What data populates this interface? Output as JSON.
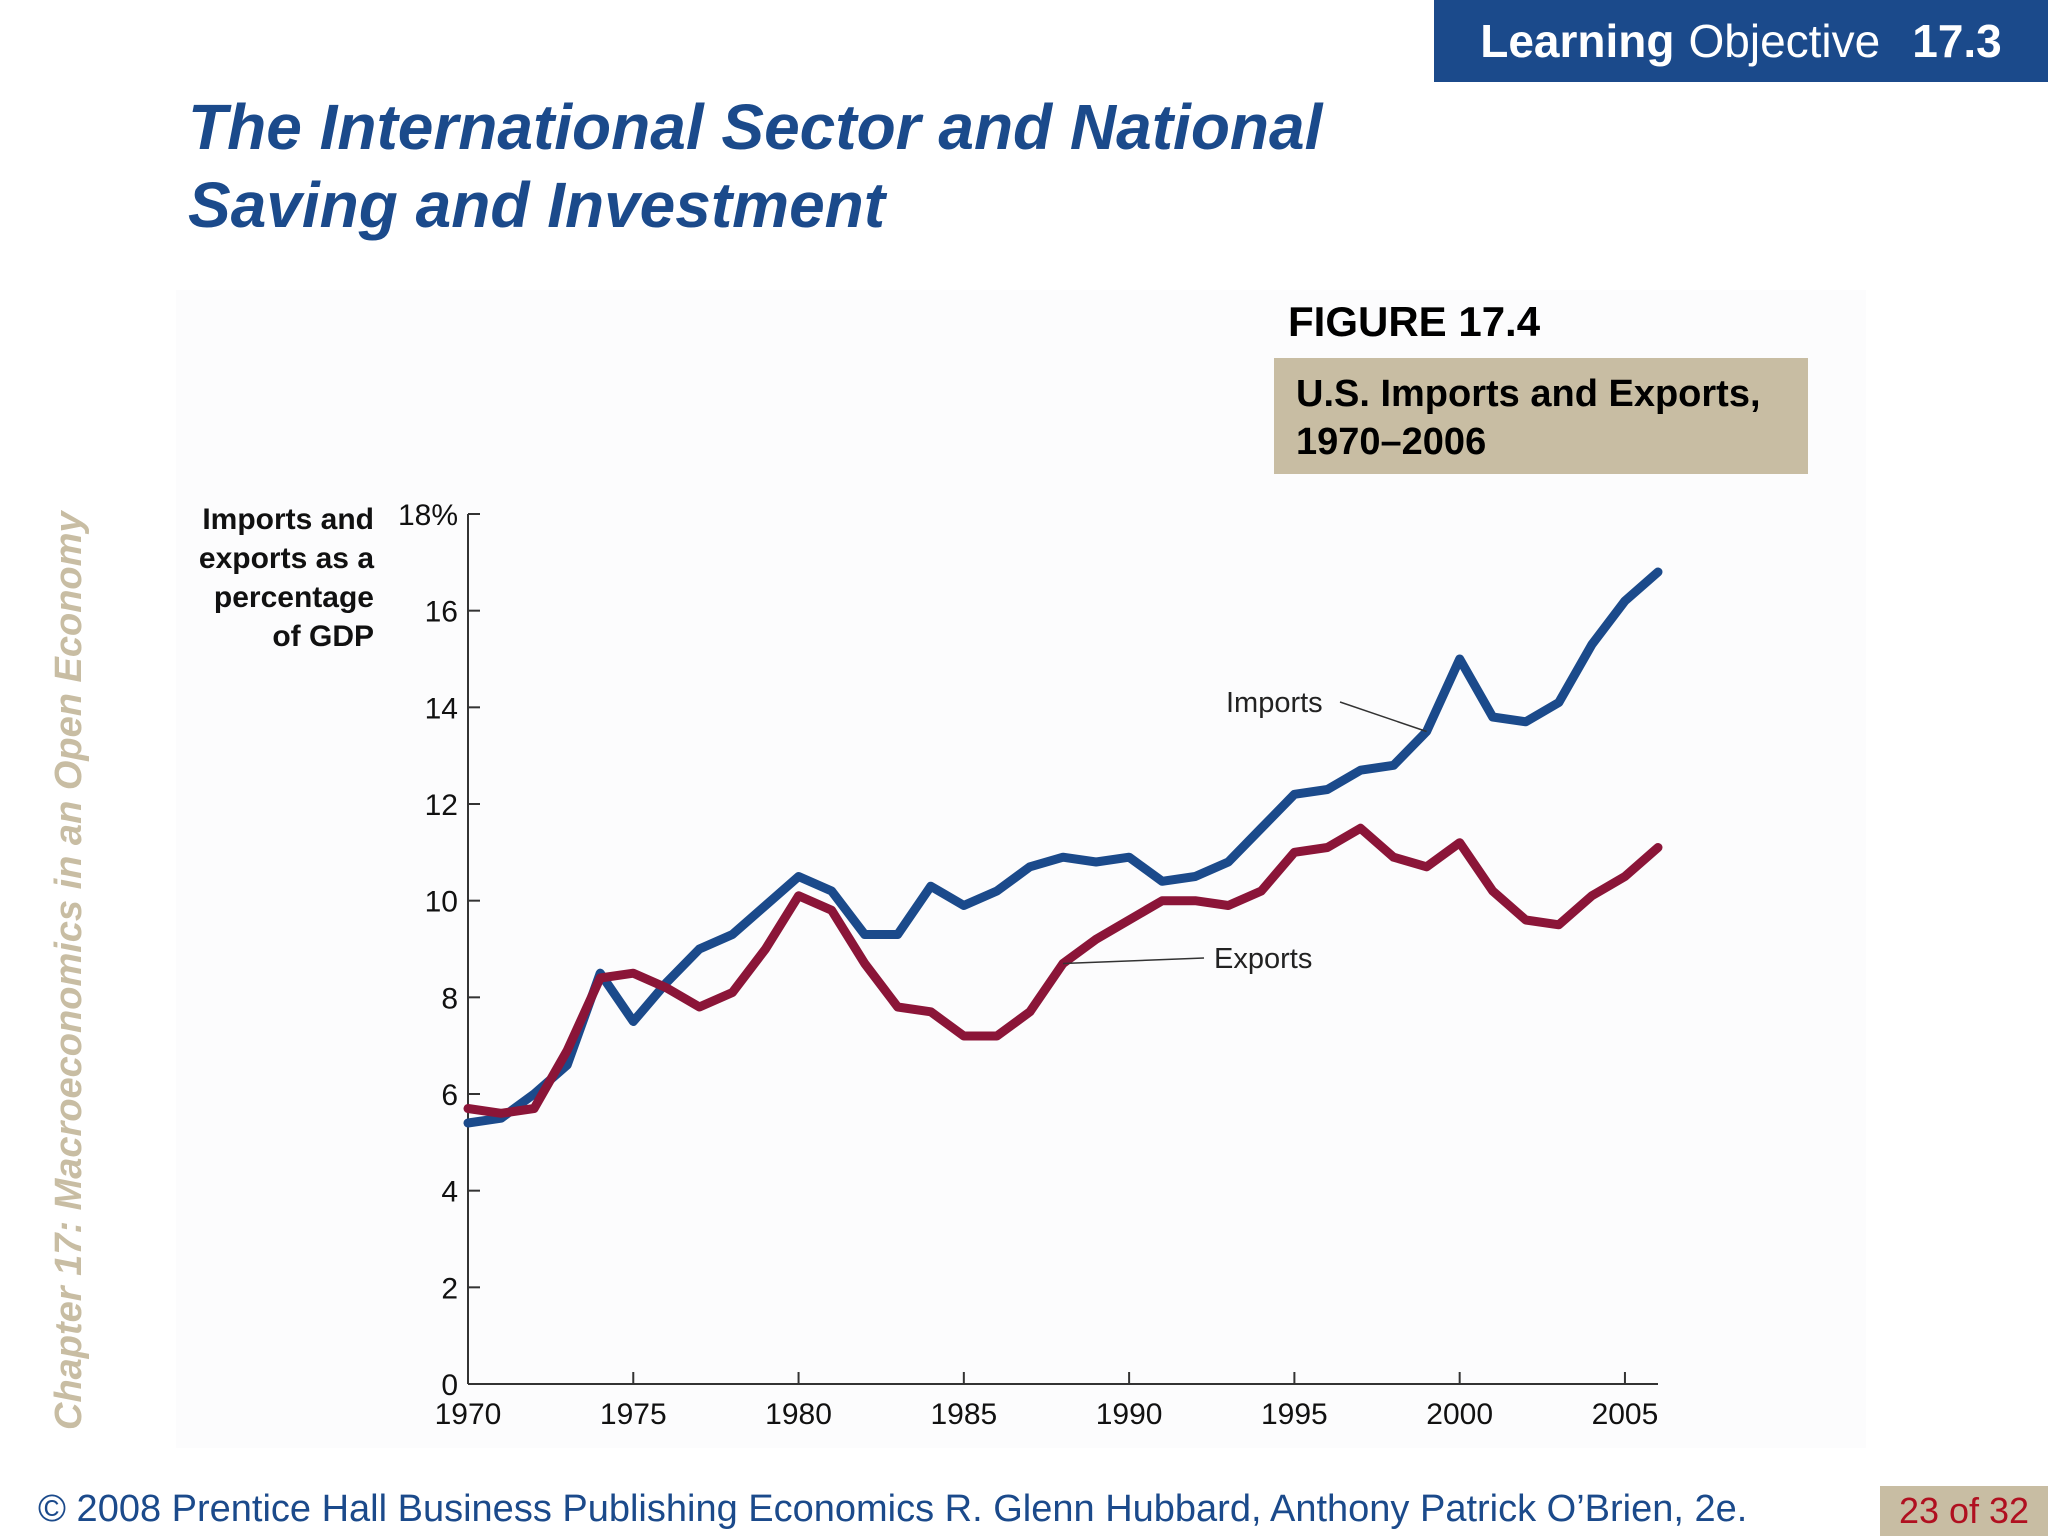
{
  "badge": {
    "learning": "Learning",
    "objective": "Objective",
    "number": "17.3"
  },
  "slide_title": "The International Sector and National Saving and Investment",
  "side_text": "Chapter 17:  Macroeconomics in an Open Economy",
  "figure": {
    "label": "FIGURE 17.4",
    "caption": "U.S. Imports and Exports, 1970–2006"
  },
  "footer": {
    "text": "© 2008 Prentice Hall Business Publishing   Economics  R. Glenn Hubbard, Anthony Patrick O’Brien, 2e.",
    "page": "23 of 32"
  },
  "colors": {
    "imports": "#1b4a8b",
    "exports": "#8b1538",
    "accent": "#1b4a8b",
    "tan": "#c8bda3"
  },
  "chart_data": {
    "type": "line",
    "ylabel": "Imports and\nexports as a\npercentage\nof GDP",
    "xlim": [
      1970,
      2006
    ],
    "ylim": [
      0,
      18
    ],
    "x_ticks": [
      "1970",
      "1975",
      "1980",
      "1985",
      "1990",
      "1995",
      "2000",
      "2005"
    ],
    "y_ticks": [
      "0",
      "2",
      "4",
      "6",
      "8",
      "10",
      "12",
      "14",
      "16",
      "18%"
    ],
    "grid": false,
    "x": [
      1970,
      1971,
      1972,
      1973,
      1974,
      1975,
      1976,
      1977,
      1978,
      1979,
      1980,
      1981,
      1982,
      1983,
      1984,
      1985,
      1986,
      1987,
      1988,
      1989,
      1990,
      1991,
      1992,
      1993,
      1994,
      1995,
      1996,
      1997,
      1998,
      1999,
      2000,
      2001,
      2002,
      2003,
      2004,
      2005,
      2006
    ],
    "series": [
      {
        "name": "Imports",
        "values": [
          5.4,
          5.5,
          6.0,
          6.6,
          8.5,
          7.5,
          8.3,
          9.0,
          9.3,
          9.9,
          10.5,
          10.2,
          9.3,
          9.3,
          10.3,
          9.9,
          10.2,
          10.7,
          10.9,
          10.8,
          10.9,
          10.4,
          10.5,
          10.8,
          11.5,
          12.2,
          12.3,
          12.7,
          12.8,
          13.5,
          15.0,
          13.8,
          13.7,
          14.1,
          15.3,
          16.2,
          16.8
        ]
      },
      {
        "name": "Exports",
        "values": [
          5.7,
          5.6,
          5.7,
          6.9,
          8.4,
          8.5,
          8.2,
          7.8,
          8.1,
          9.0,
          10.1,
          9.8,
          8.7,
          7.8,
          7.7,
          7.2,
          7.2,
          7.7,
          8.7,
          9.2,
          9.6,
          10.0,
          10.0,
          9.9,
          10.2,
          11.0,
          11.1,
          11.5,
          10.9,
          10.7,
          11.2,
          10.2,
          9.6,
          9.5,
          10.1,
          10.5,
          11.1
        ]
      }
    ]
  }
}
